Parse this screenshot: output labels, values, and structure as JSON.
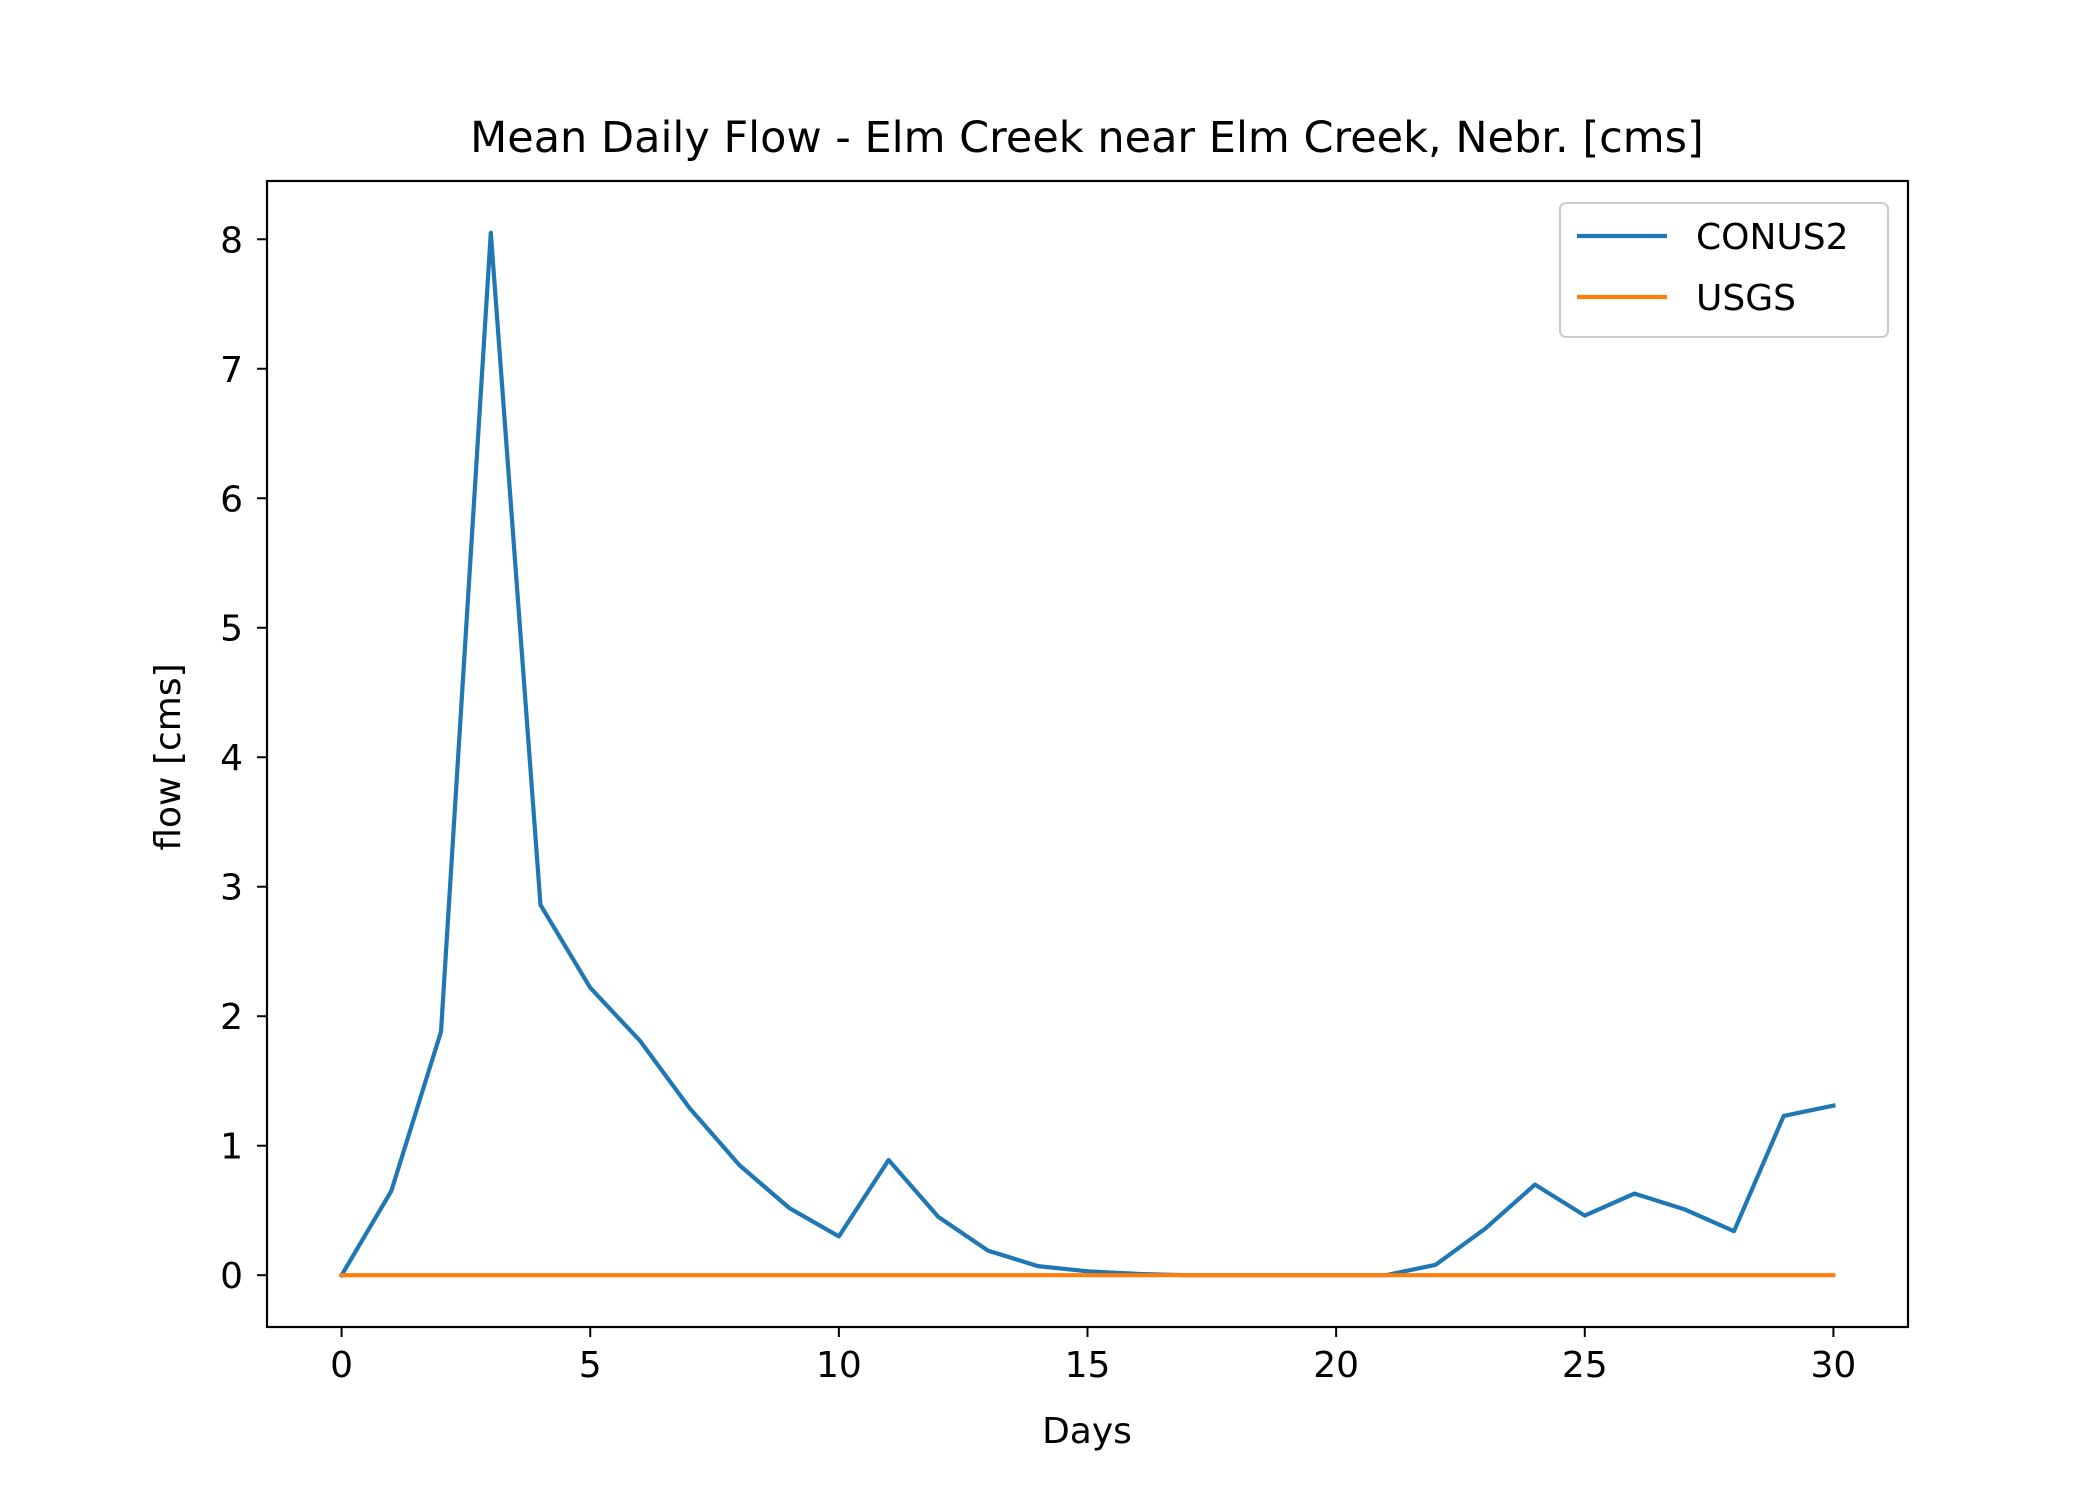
{
  "chart_data": {
    "type": "line",
    "title": "Mean Daily Flow - Elm Creek near Elm Creek, Nebr. [cms]",
    "xlabel": "Days",
    "ylabel": "flow [cms]",
    "xlim": [
      -1.5,
      31.5
    ],
    "ylim": [
      -0.4,
      8.45
    ],
    "xticks": [
      0,
      5,
      10,
      15,
      20,
      25,
      30
    ],
    "yticks": [
      0,
      1,
      2,
      3,
      4,
      5,
      6,
      7,
      8
    ],
    "x": [
      0,
      1,
      2,
      3,
      4,
      5,
      6,
      7,
      8,
      9,
      10,
      11,
      12,
      13,
      14,
      15,
      16,
      17,
      18,
      19,
      20,
      21,
      22,
      23,
      24,
      25,
      26,
      27,
      28,
      29,
      30
    ],
    "series": [
      {
        "name": "CONUS2",
        "color": "#1f77b4",
        "values": [
          0.0,
          0.65,
          1.88,
          8.05,
          2.86,
          2.22,
          1.81,
          1.29,
          0.85,
          0.52,
          0.3,
          0.89,
          0.45,
          0.19,
          0.07,
          0.03,
          0.01,
          0.0,
          0.0,
          0.0,
          0.0,
          0.0,
          0.08,
          0.36,
          0.7,
          0.46,
          0.63,
          0.51,
          0.34,
          1.23,
          1.31
        ]
      },
      {
        "name": "USGS",
        "color": "#ff7f0e",
        "values": [
          0,
          0,
          0,
          0,
          0,
          0,
          0,
          0,
          0,
          0,
          0,
          0,
          0,
          0,
          0,
          0,
          0,
          0,
          0,
          0,
          0,
          0,
          0,
          0,
          0,
          0,
          0,
          0,
          0,
          0,
          0
        ]
      }
    ],
    "legend": "top-right",
    "grid": false
  }
}
